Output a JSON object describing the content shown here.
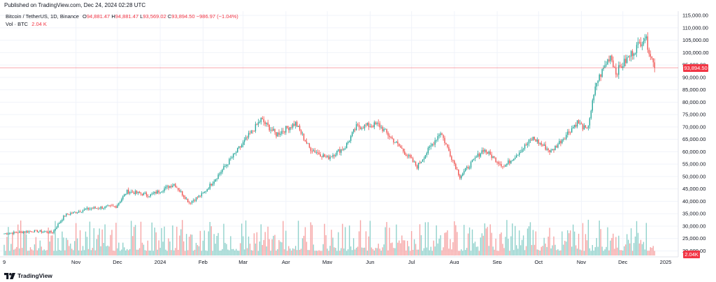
{
  "published": "Published on TradingView.com, Dec 24, 2024 02:28 UTC",
  "legend": {
    "symbol": "Bitcoin / TetherUS, 1D, Binance",
    "o_label": "O",
    "o_value": "94,881.47",
    "h_label": "H",
    "h_value": "94,881.47",
    "l_label": "L",
    "l_value": "93,569.02",
    "c_label": "C",
    "c_value": "93,894.50",
    "change": "−986.97 (−1.04%)",
    "vol_label": "Vol · BTC",
    "vol_value": "2.04 K"
  },
  "last_price_badge": "93,894.50",
  "volume_badge": "2.04K",
  "footer": {
    "brand": "TradingView",
    "logo_icon": "tradingview-logo-icon"
  },
  "colors": {
    "up": "#26a69a",
    "down": "#ef5350",
    "up_vol": "#8fd1cb",
    "down_vol": "#f6a4a4",
    "price_line": "#f23645",
    "grid": "#f0f3fa"
  },
  "chart_data": {
    "type": "candlestick",
    "title": "Bitcoin / TetherUS, 1D, Binance",
    "y_tick_labels": [
      "115,000.00",
      "110,000.00",
      "105,000.00",
      "100,000.00",
      "95,000.00",
      "90,000.00",
      "85,000.00",
      "80,000.00",
      "75,000.00",
      "70,000.00",
      "65,000.00",
      "60,000.00",
      "55,000.00",
      "50,000.00",
      "45,000.00",
      "40,000.00",
      "35,000.00",
      "30,000.00",
      "25,000.00",
      "20,000.00"
    ],
    "y_tick_values": [
      115000,
      110000,
      105000,
      100000,
      95000,
      90000,
      85000,
      80000,
      75000,
      70000,
      65000,
      60000,
      55000,
      50000,
      45000,
      40000,
      35000,
      30000,
      25000,
      20000
    ],
    "x_tick_labels": [
      "9",
      "Nov",
      "Dec",
      "2024",
      "Feb",
      "Mar",
      "Apr",
      "May",
      "Jun",
      "Jul",
      "Aug",
      "Sep",
      "Oct",
      "Nov",
      "Dec",
      "2025"
    ],
    "x_tick_months": [
      "2023-09",
      "2023-11",
      "2023-12",
      "2024-01",
      "2024-02",
      "2024-03",
      "2024-04",
      "2024-05",
      "2024-06",
      "2024-07",
      "2024-08",
      "2024-09",
      "2024-10",
      "2024-11",
      "2024-12",
      "2025-01"
    ],
    "last_close": 93894.5,
    "ylim": [
      19000,
      117000
    ],
    "price_path_approx": [
      [
        "2023-09-10",
        27000
      ],
      [
        "2023-10-01",
        28000
      ],
      [
        "2023-10-15",
        27500
      ],
      [
        "2023-10-24",
        34500
      ],
      [
        "2023-11-10",
        37000
      ],
      [
        "2023-11-30",
        38000
      ],
      [
        "2023-12-08",
        44000
      ],
      [
        "2023-12-25",
        42500
      ],
      [
        "2024-01-11",
        47000
      ],
      [
        "2024-01-22",
        39500
      ],
      [
        "2024-02-01",
        43000
      ],
      [
        "2024-02-14",
        52000
      ],
      [
        "2024-02-28",
        62000
      ],
      [
        "2024-03-14",
        73000
      ],
      [
        "2024-03-25",
        67000
      ],
      [
        "2024-04-08",
        71500
      ],
      [
        "2024-04-18",
        61500
      ],
      [
        "2024-05-01",
        57500
      ],
      [
        "2024-05-14",
        62000
      ],
      [
        "2024-05-22",
        70000
      ],
      [
        "2024-06-07",
        71000
      ],
      [
        "2024-06-24",
        61000
      ],
      [
        "2024-07-05",
        54000
      ],
      [
        "2024-07-22",
        68000
      ],
      [
        "2024-08-05",
        50000
      ],
      [
        "2024-08-22",
        61000
      ],
      [
        "2024-09-06",
        54000
      ],
      [
        "2024-09-27",
        65500
      ],
      [
        "2024-10-10",
        60000
      ],
      [
        "2024-10-29",
        72000
      ],
      [
        "2024-11-05",
        68500
      ],
      [
        "2024-11-12",
        88000
      ],
      [
        "2024-11-22",
        99000
      ],
      [
        "2024-11-26",
        92000
      ],
      [
        "2024-12-05",
        98000
      ],
      [
        "2024-12-17",
        106500
      ],
      [
        "2024-12-24",
        93894.5
      ]
    ]
  }
}
